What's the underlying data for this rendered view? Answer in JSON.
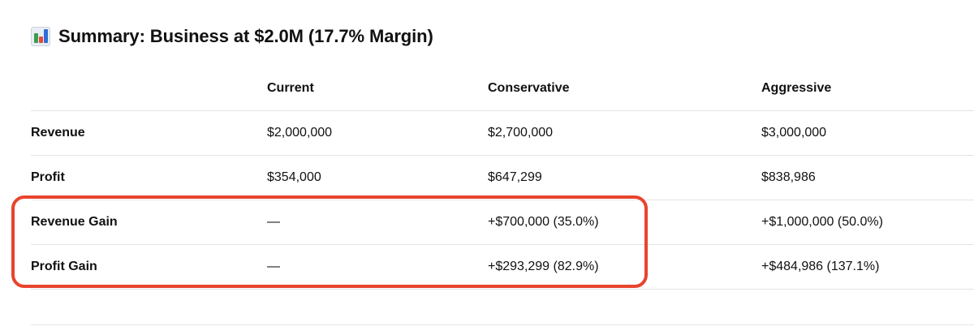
{
  "heading": {
    "icon": "bar-chart-icon",
    "title": "Summary: Business at $2.0M (17.7% Margin)"
  },
  "table": {
    "columns": [
      "",
      "Current",
      "Conservative",
      "Aggressive"
    ],
    "rows": [
      {
        "label": "Revenue",
        "current": "$2,000,000",
        "conservative": "$2,700,000",
        "aggressive": "$3,000,000"
      },
      {
        "label": "Profit",
        "current": "$354,000",
        "conservative": "$647,299",
        "aggressive": "$838,986"
      },
      {
        "label": "Revenue Gain",
        "current": "—",
        "conservative": "+$700,000 (35.0%)",
        "aggressive": "+$1,000,000 (50.0%)"
      },
      {
        "label": "Profit Gain",
        "current": "—",
        "conservative": "+$293,299 (82.9%)",
        "aggressive": "+$484,986 (137.1%)"
      }
    ]
  },
  "colors": {
    "highlight": "#e8442e",
    "icon_bar_1": "#3c9b4e",
    "icon_bar_2": "#e64a3b",
    "icon_bar_3": "#2f6fd6"
  }
}
